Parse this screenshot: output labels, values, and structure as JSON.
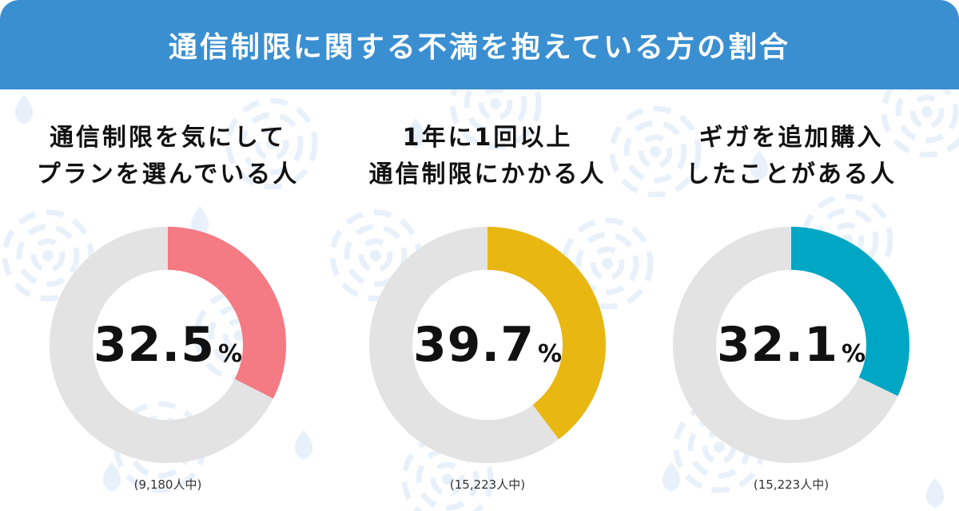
{
  "header": {
    "title": "通信制限に関する不満を抱えている方の割合",
    "color": "#3a8fd1"
  },
  "colors": {
    "track": "#e3e3e3",
    "pattern": "#e8f1fa"
  },
  "chart_data": [
    {
      "type": "pie",
      "title_lines": [
        "通信制限を気にして",
        "プランを選んでいる人"
      ],
      "value": 32.5,
      "value_label": "32.5",
      "unit": "%",
      "sample": "(9,180人中)",
      "color": "#f47a83"
    },
    {
      "type": "pie",
      "title_lines": [
        "1年に1回以上",
        "通信制限にかかる人"
      ],
      "value": 39.7,
      "value_label": "39.7",
      "unit": "%",
      "sample": "(15,223人中)",
      "color": "#e8b712"
    },
    {
      "type": "pie",
      "title_lines": [
        "ギガを追加購入",
        "したことがある人"
      ],
      "value": 32.1,
      "value_label": "32.1",
      "unit": "%",
      "sample": "(15,223人中)",
      "color": "#00a7c4"
    }
  ]
}
